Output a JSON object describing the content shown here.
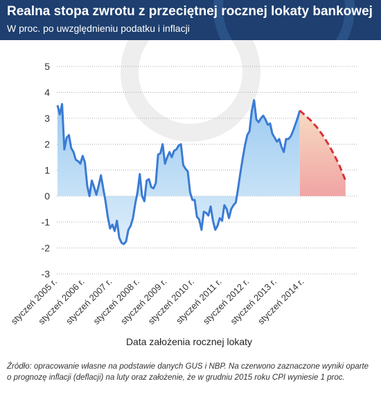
{
  "header": {
    "title": "Realna stopa zwrotu z przeciętnej rocznej lokaty bankowej",
    "subtitle": "W proc. po uwzględnieniu podatku i inflacji"
  },
  "footer": {
    "source": "Źródło: opracowanie własne na podstawie danych GUS i NBP. Na czerwono zaznaczone wyniki oparte o prognozę inflacji (deflacji) na luty oraz założenie, że w grudniu 2015 roku CPI wyniesie 1 proc."
  },
  "colors": {
    "header_bg": "#1e3f6f",
    "line": "#3b7bd4",
    "area_top": "#9ccaf0",
    "area_bottom": "#ddeefa",
    "forecast_line": "#d9333a",
    "forecast_fill_top": "#f7dcc2",
    "forecast_fill_bottom": "#f0a4a4",
    "grid": "#aaaaaa"
  },
  "chart_data": {
    "type": "area",
    "xlabel": "Data założenia rocznej lokaty",
    "ylabel": "",
    "ylim": [
      -3,
      5
    ],
    "yticks": [
      -3,
      -2,
      -1,
      0,
      1,
      2,
      3,
      4,
      5
    ],
    "grid": true,
    "x_start": "styczeń 2005",
    "x_step": "1 miesiąc",
    "xtick_labels": [
      "styczeń 2005 r.",
      "styczeń 2006 r.",
      "styczeń 2007 r.",
      "styczeń 2008 r.",
      "styczeń 2009 r.",
      "styczeń 2010 r.",
      "styczeń 2011 r.",
      "styczeń 2012 r.",
      "styczeń 2013 r.",
      "styczeń 2014 r."
    ],
    "series": [
      {
        "values": [
          3.5,
          3.15,
          3.55,
          1.8,
          2.25,
          2.35,
          1.85,
          1.7,
          1.4,
          1.35,
          1.25,
          1.55,
          1.3,
          0.4,
          0.0,
          0.6,
          0.35,
          0.05,
          0.4,
          0.8,
          0.3,
          -0.2,
          -0.8,
          -1.25,
          -1.1,
          -1.35,
          -0.95,
          -1.6,
          -1.8,
          -1.85,
          -1.75,
          -1.3,
          -1.15,
          -0.85,
          -0.3,
          0.15,
          0.85,
          0.0,
          -0.2,
          0.6,
          0.65,
          0.35,
          0.3,
          0.5,
          1.6,
          1.65,
          2.0,
          1.25,
          1.5,
          1.7,
          1.5,
          1.75,
          1.8,
          1.95,
          2.0,
          1.2,
          1.05,
          0.95,
          0.15,
          -0.15,
          -0.15,
          -0.8,
          -0.9,
          -1.3,
          -0.6,
          -0.65,
          -0.75,
          -0.4,
          -0.95,
          -1.3,
          -1.15,
          -0.85,
          -0.95,
          -0.35,
          -0.5,
          -0.85,
          -0.5,
          -0.35,
          -0.25,
          0.3,
          0.9,
          1.45,
          1.95,
          2.35,
          2.5,
          3.3,
          3.7,
          2.95,
          2.85,
          3.0,
          3.1,
          2.95,
          2.75,
          2.8,
          2.4,
          2.25,
          2.1,
          2.2,
          1.9,
          1.7,
          2.2,
          2.2,
          2.3,
          2.5,
          2.75,
          3.0,
          3.3
        ]
      },
      {
        "name": "prognoza",
        "values": [
          3.3,
          3.1,
          2.9,
          2.65,
          2.35,
          2.0,
          1.6,
          1.15,
          0.6
        ]
      }
    ]
  }
}
